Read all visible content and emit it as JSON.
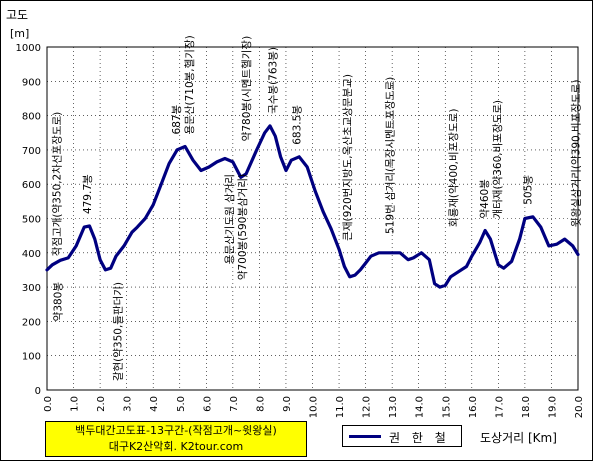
{
  "chart_data": {
    "type": "line",
    "ylabel": "고도",
    "yunit": "[m]",
    "xlabel": "도상거리 [Km]",
    "xlim": [
      0,
      20
    ],
    "ylim": [
      0,
      1000
    ],
    "x_ticks": [
      "0.0",
      "1.0",
      "2.0",
      "3.0",
      "4.0",
      "5.0",
      "6.0",
      "7.0",
      "8.0",
      "9.0",
      "10.0",
      "11.0",
      "12.0",
      "13.0",
      "14.0",
      "15.0",
      "16.0",
      "17.0",
      "18.0",
      "19.0",
      "20.0"
    ],
    "y_ticks": [
      "0",
      "100",
      "200",
      "300",
      "400",
      "500",
      "600",
      "700",
      "800",
      "900",
      "1000"
    ],
    "grid": true,
    "legend_position": "bottom-center",
    "series": [
      {
        "name": "권 한 철",
        "color": "#000080",
        "x": [
          0.0,
          0.2,
          0.5,
          0.8,
          1.1,
          1.4,
          1.6,
          1.8,
          2.0,
          2.2,
          2.4,
          2.6,
          2.9,
          3.2,
          3.4,
          3.7,
          4.0,
          4.3,
          4.6,
          4.9,
          5.2,
          5.5,
          5.8,
          6.1,
          6.4,
          6.7,
          7.0,
          7.3,
          7.5,
          7.7,
          7.9,
          8.2,
          8.4,
          8.6,
          8.8,
          9.0,
          9.2,
          9.5,
          9.8,
          10.1,
          10.4,
          10.7,
          11.0,
          11.2,
          11.4,
          11.6,
          11.8,
          12.0,
          12.2,
          12.5,
          12.8,
          13.0,
          13.3,
          13.6,
          13.8,
          14.1,
          14.4,
          14.6,
          14.8,
          15.0,
          15.2,
          15.5,
          15.8,
          16.0,
          16.3,
          16.5,
          16.7,
          17.0,
          17.2,
          17.5,
          17.8,
          18.0,
          18.3,
          18.6,
          18.9,
          19.2,
          19.5,
          19.8,
          20.0
        ],
        "y": [
          350,
          365,
          378,
          385,
          420,
          475,
          478,
          440,
          380,
          350,
          355,
          390,
          420,
          460,
          475,
          500,
          540,
          600,
          660,
          700,
          710,
          670,
          640,
          650,
          665,
          675,
          665,
          620,
          630,
          665,
          700,
          750,
          770,
          740,
          680,
          640,
          670,
          680,
          650,
          580,
          520,
          470,
          410,
          360,
          330,
          335,
          350,
          370,
          390,
          400,
          400,
          400,
          400,
          380,
          385,
          400,
          380,
          310,
          300,
          305,
          330,
          345,
          360,
          390,
          430,
          465,
          440,
          365,
          355,
          375,
          440,
          500,
          505,
          475,
          420,
          425,
          440,
          420,
          395
        ]
      }
    ],
    "annotations": [
      {
        "x": 0.4,
        "y": 350,
        "lines": [
          "약380봉"
        ],
        "side": "below"
      },
      {
        "x": 0.35,
        "y": 355,
        "lines": [
          "작점고개(약350,2차선포장도로)"
        ],
        "side": "above"
      },
      {
        "x": 1.5,
        "y": 478,
        "lines": [
          "479.7봉"
        ],
        "side": "above"
      },
      {
        "x": 2.65,
        "y": 350,
        "lines": [
          "갈현(약350,들판더기)"
        ],
        "side": "below"
      },
      {
        "x": 5.1,
        "y": 710,
        "lines": [
          "687봉",
          "용문산(710봉,헬기장)"
        ],
        "side": "above"
      },
      {
        "x": 7.1,
        "y": 665,
        "lines": [
          "용문산기도원 삼거리",
          "약700봉(590봉삼거리)"
        ],
        "side": "below"
      },
      {
        "x": 7.5,
        "y": 690,
        "lines": [
          "약780봉(시멘트헬기장)"
        ],
        "side": "above"
      },
      {
        "x": 8.5,
        "y": 770,
        "lines": [
          "국수봉(763봉)"
        ],
        "side": "above"
      },
      {
        "x": 9.4,
        "y": 680,
        "lines": [
          "683.5봉"
        ],
        "side": "above"
      },
      {
        "x": 11.3,
        "y": 400,
        "lines": [
          "큰재(920번지방도,옥산초교상문분교)"
        ],
        "side": "above"
      },
      {
        "x": 12.9,
        "y": 420,
        "lines": [
          "519번 삼거리(목장시멘트포장도로)"
        ],
        "side": "above"
      },
      {
        "x": 15.3,
        "y": 440,
        "lines": [
          "회룡재(약400,비포장도로)"
        ],
        "side": "above"
      },
      {
        "x": 16.7,
        "y": 465,
        "lines": [
          "약460봉",
          "개터재(약360,비포장도로)"
        ],
        "side": "above"
      },
      {
        "x": 18.1,
        "y": 505,
        "lines": [
          "505봉"
        ],
        "side": "above"
      },
      {
        "x": 19.9,
        "y": 440,
        "lines": [
          "윗왕실삼거리(약390,비포장도로)"
        ],
        "side": "above"
      }
    ]
  },
  "caption": {
    "line1": "백두대간고도표-13구간-(작점고개~윗왕실)",
    "line2": "대구K2산악회. K2tour.com"
  }
}
